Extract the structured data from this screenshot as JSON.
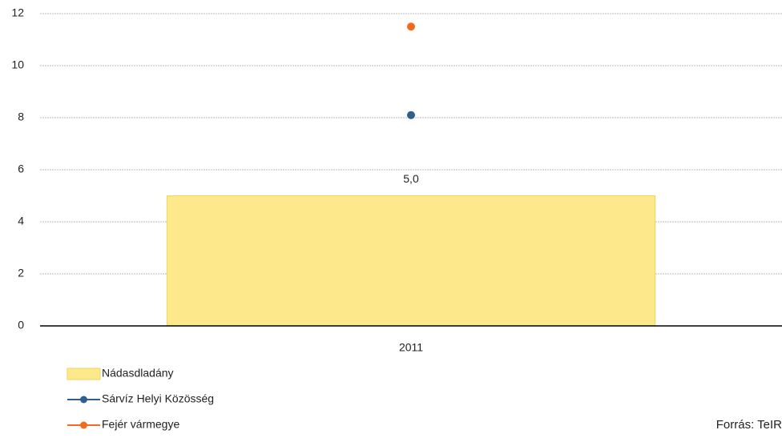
{
  "chart_data": {
    "type": "bar",
    "categories": [
      "2011"
    ],
    "series": [
      {
        "name": "Nádasdladány",
        "type": "bar",
        "color": "#fde98c",
        "values": [
          5.0
        ],
        "value_labels": [
          "5,0"
        ]
      },
      {
        "name": "Sárvíz Helyi Közösség",
        "type": "line",
        "color": "#2f5f8f",
        "values": [
          8.1
        ]
      },
      {
        "name": "Fejér vármegye",
        "type": "line",
        "color": "#f26a1b",
        "values": [
          11.5
        ]
      }
    ],
    "ylim": [
      0,
      12
    ],
    "yticks": [
      0,
      2,
      4,
      6,
      8,
      10,
      12
    ],
    "grid": true,
    "legend": "bottom-left",
    "source": "Forrás: TeIR"
  }
}
